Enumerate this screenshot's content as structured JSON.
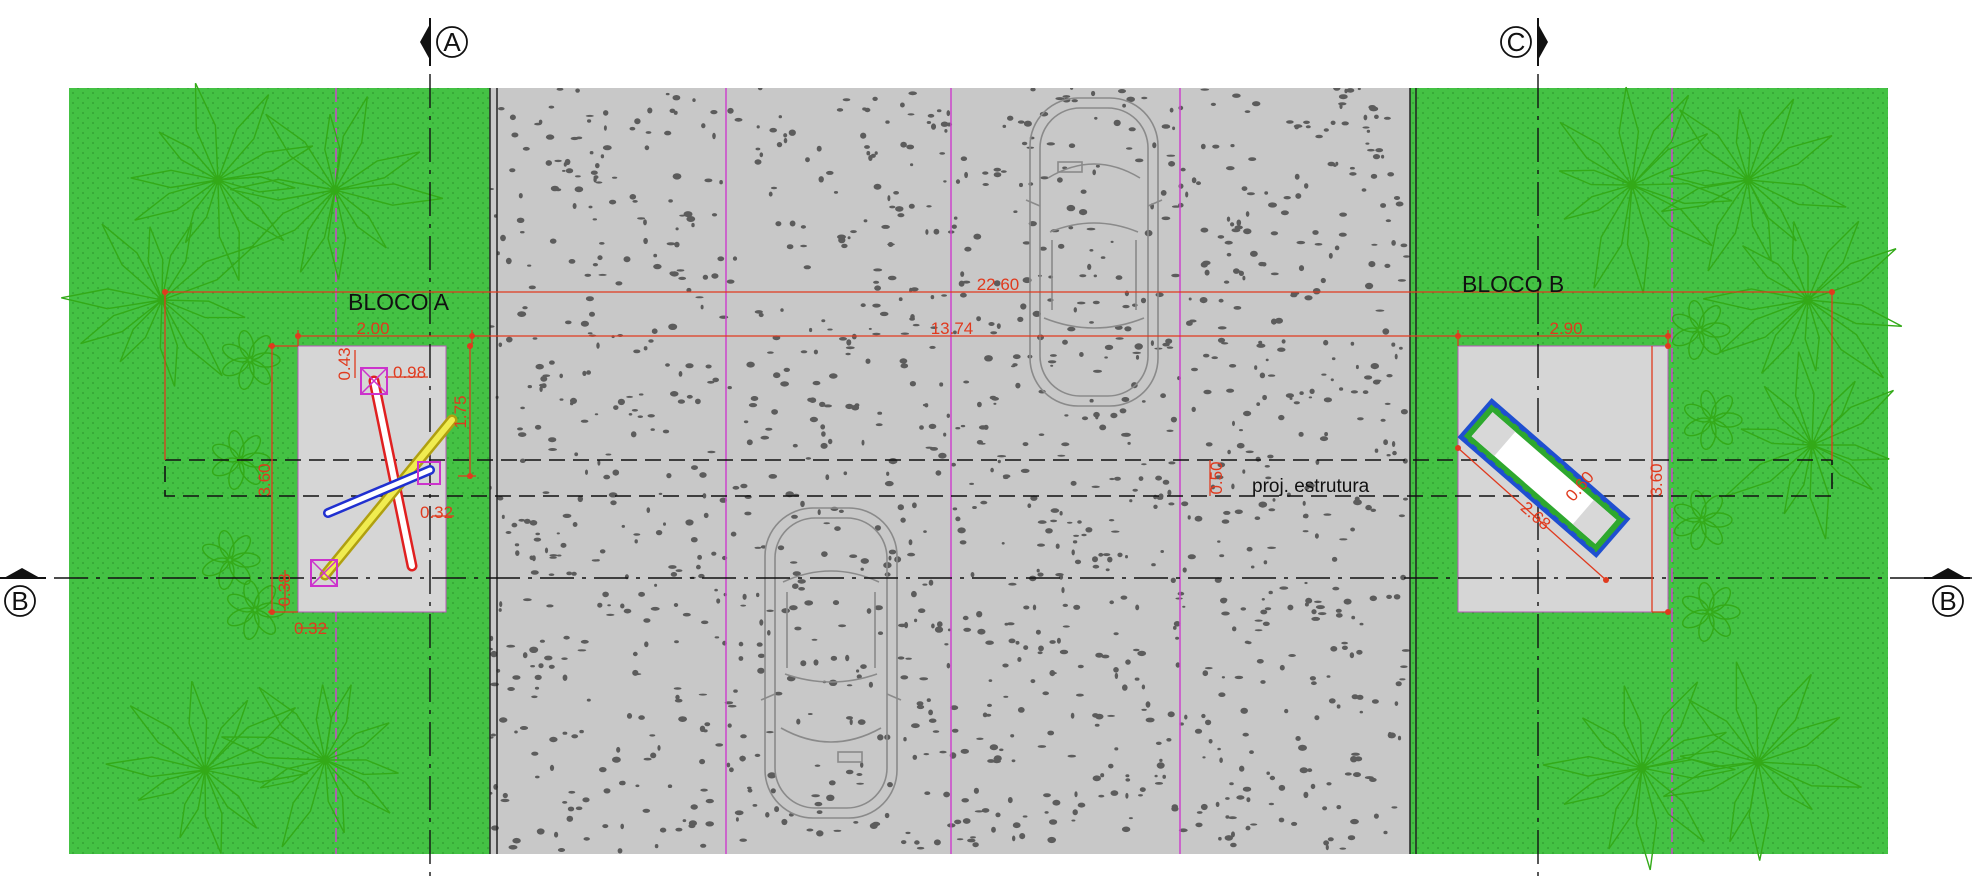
{
  "section_markers": {
    "a": "A",
    "b": "B",
    "c": "C"
  },
  "blocks": {
    "block_a": "BLOCO A",
    "block_b": "BLOCO B"
  },
  "annotations": {
    "proj_structure": "proj. estrutura"
  },
  "dimensions": {
    "overall": "22.60",
    "between_blocks": "13.74",
    "block_a_width": "2.00",
    "block_b_width": "2.90",
    "block_b_height": "3.60",
    "block_a_height": "3.60",
    "pipe_top_offset": "0.43",
    "pipe_top_length": "0.98",
    "pipe_vertical": "1.75",
    "pipe_small": "0.32",
    "pipe_bottom_vertical": "0.38",
    "pipe_bottom_horizontal": "0.32",
    "road_gap": "0.50",
    "diag_length": "2.68",
    "diag_width": "0.60"
  },
  "colors": {
    "grass": "#44c244",
    "grass_dot": "#2f9a2f",
    "plant": "#33aa18",
    "road": "#c8c8c8",
    "gravel": "#5c5c5c",
    "slab": "#d6d6d6",
    "dimension": "#e03a1e",
    "lane_line": "#cc44cc",
    "axis": "#111111",
    "pipe_red": "#e02020",
    "pipe_yellow": "#e8e020",
    "pipe_blue": "#2030d0",
    "tank_blue": "#1f4fd0",
    "tank_green": "#2ea82e"
  }
}
